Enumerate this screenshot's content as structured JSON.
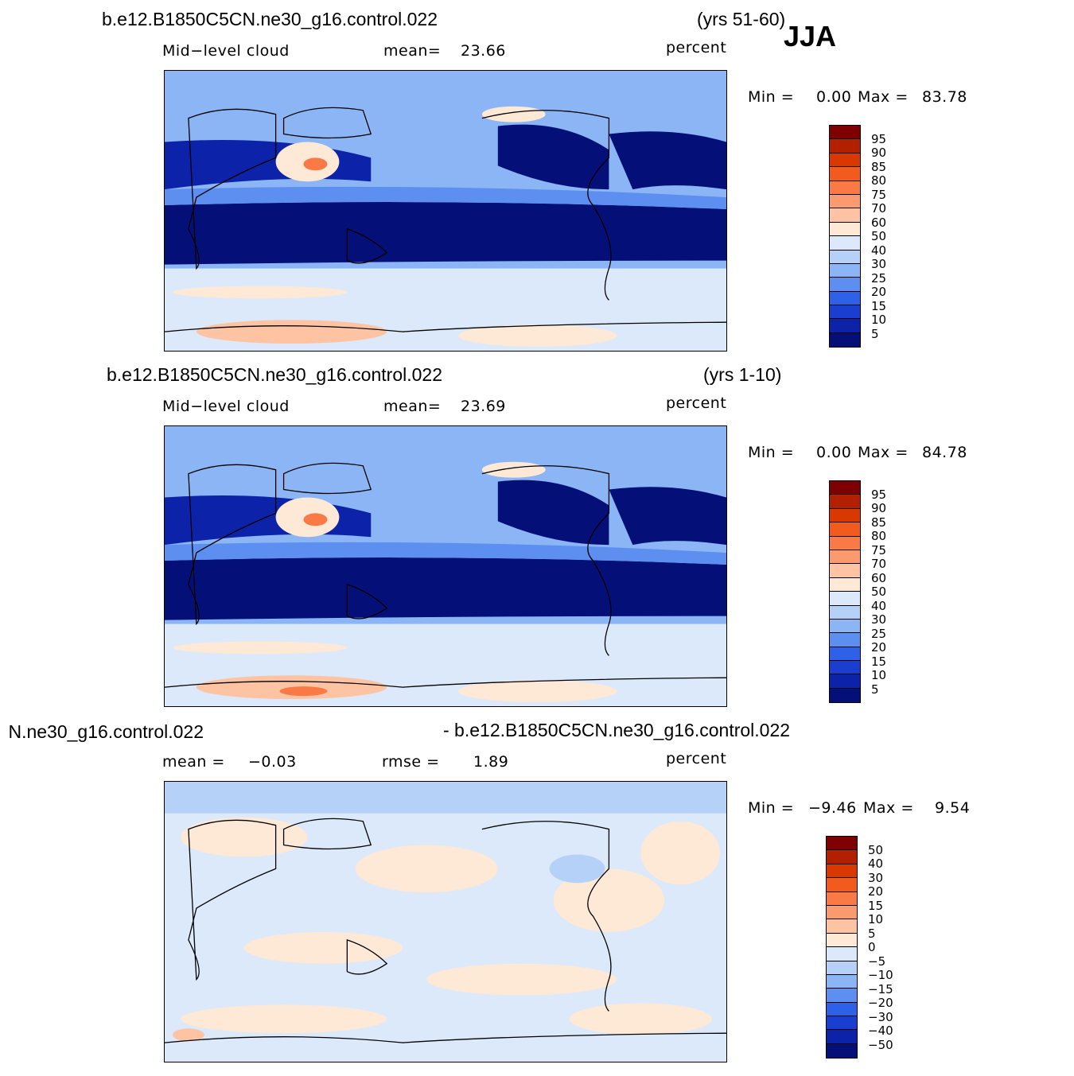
{
  "header": {
    "season": "JJA"
  },
  "panels": [
    {
      "id": "test",
      "case_title": "b.e12.B1850C5CN.ne30_g16.control.022",
      "years": "(yrs 51-60)",
      "variable": "Mid−level  cloud",
      "stat_label": "mean=",
      "stat_value": "23.66",
      "units": "percent",
      "min_label": "Min  =",
      "min_value": "0.00",
      "max_label": "Max  =",
      "max_value": "83.78",
      "colorbar_ticks": [
        "95",
        "90",
        "85",
        "80",
        "75",
        "70",
        "60",
        "50",
        "40",
        "30",
        "25",
        "20",
        "15",
        "10",
        "5"
      ]
    },
    {
      "id": "control",
      "case_title": "b.e12.B1850C5CN.ne30_g16.control.022",
      "years": "(yrs 1-10)",
      "variable": "Mid−level  cloud",
      "stat_label": "mean=",
      "stat_value": "23.69",
      "units": "percent",
      "min_label": "Min  =",
      "min_value": "0.00",
      "max_label": "Max  =",
      "max_value": "84.78",
      "colorbar_ticks": [
        "95",
        "90",
        "85",
        "80",
        "75",
        "70",
        "60",
        "50",
        "40",
        "30",
        "25",
        "20",
        "15",
        "10",
        "5"
      ]
    },
    {
      "id": "difference",
      "case_title_left": "N.ne30_g16.control.022",
      "case_title_right": "- b.e12.B1850C5CN.ne30_g16.control.022",
      "mean_label": "mean  =",
      "mean_value": "−0.03",
      "rmse_label": "rmse  =",
      "rmse_value": "1.89",
      "units": "percent",
      "min_label": "Min  =",
      "min_value": "−9.46",
      "max_label": "Max  =",
      "max_value": "9.54",
      "colorbar_ticks": [
        "50",
        "40",
        "30",
        "20",
        "15",
        "10",
        "5",
        "0",
        "−5",
        "−10",
        "−15",
        "−20",
        "−30",
        "−40",
        "−50"
      ]
    }
  ],
  "colors": {
    "abs_scale": [
      "#7f0000",
      "#b22000",
      "#d93800",
      "#f25a1e",
      "#fa7a45",
      "#fc9a6f",
      "#fdc3a3",
      "#fee8d6",
      "#dbe9fb",
      "#b5d1f7",
      "#8bb5f4",
      "#5c8ff0",
      "#2d62e8",
      "#1a3fd0",
      "#0c22a8",
      "#050f78"
    ],
    "diff_scale": [
      "#7f0000",
      "#b22000",
      "#d93800",
      "#f25a1e",
      "#fa7a45",
      "#fc9a6f",
      "#fdc3a3",
      "#fee8d6",
      "#dbe9fb",
      "#b5d1f7",
      "#8bb5f4",
      "#5c8ff0",
      "#2d62e8",
      "#1a3fd0",
      "#0c22a8",
      "#050f78"
    ],
    "land_outline": "#000000"
  }
}
